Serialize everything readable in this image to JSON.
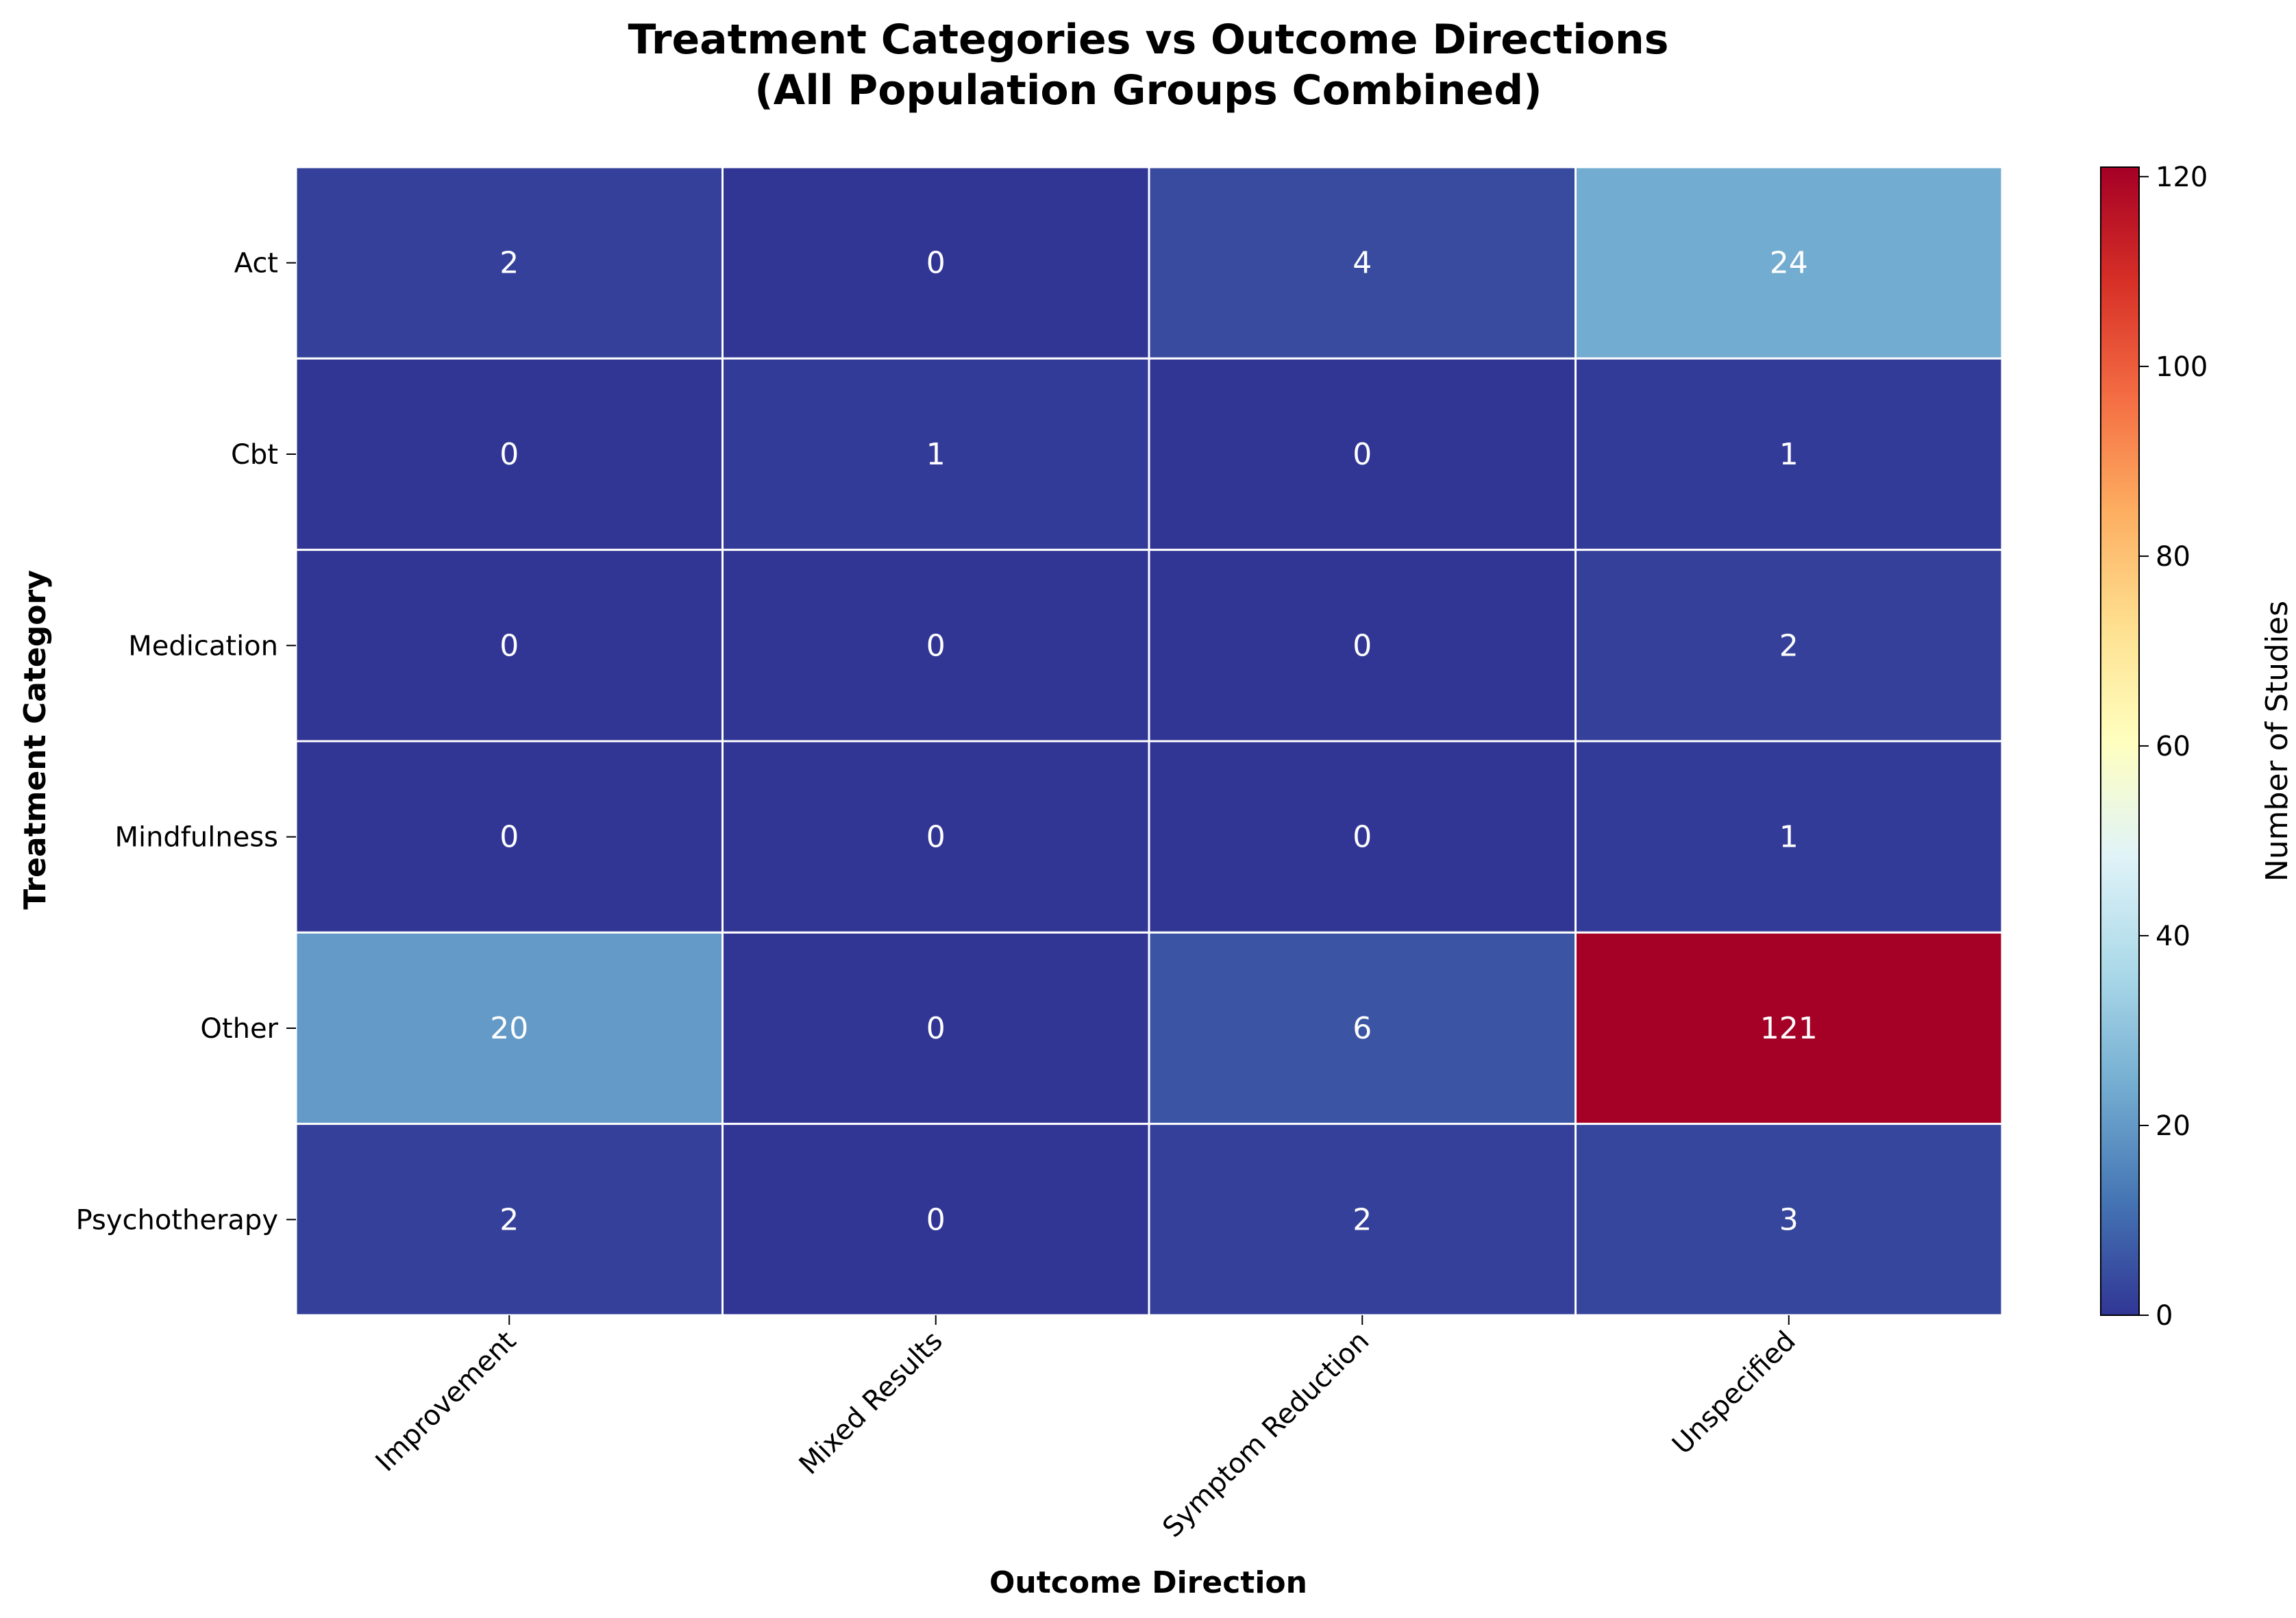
{
  "chart_data": {
    "type": "heatmap",
    "title_line1": "Treatment Categories vs Outcome Directions",
    "title_line2": "(All Population Groups Combined)",
    "xlabel": "Outcome Direction",
    "ylabel": "Treatment Category",
    "colorbar_label": "Number of Studies",
    "colormap": "RdYlBu_r",
    "x_categories": [
      "Improvement",
      "Mixed Results",
      "Symptom Reduction",
      "Unspecified"
    ],
    "y_categories": [
      "Act",
      "Cbt",
      "Medication",
      "Mindfulness",
      "Other",
      "Psychotherapy"
    ],
    "values": [
      [
        2,
        0,
        4,
        24
      ],
      [
        0,
        1,
        0,
        1
      ],
      [
        0,
        0,
        0,
        2
      ],
      [
        0,
        0,
        0,
        1
      ],
      [
        20,
        0,
        6,
        121
      ],
      [
        2,
        0,
        2,
        3
      ]
    ],
    "vmin": 0,
    "vmax": 121,
    "colorbar_ticks": [
      0,
      20,
      40,
      60,
      80,
      100,
      120
    ]
  }
}
